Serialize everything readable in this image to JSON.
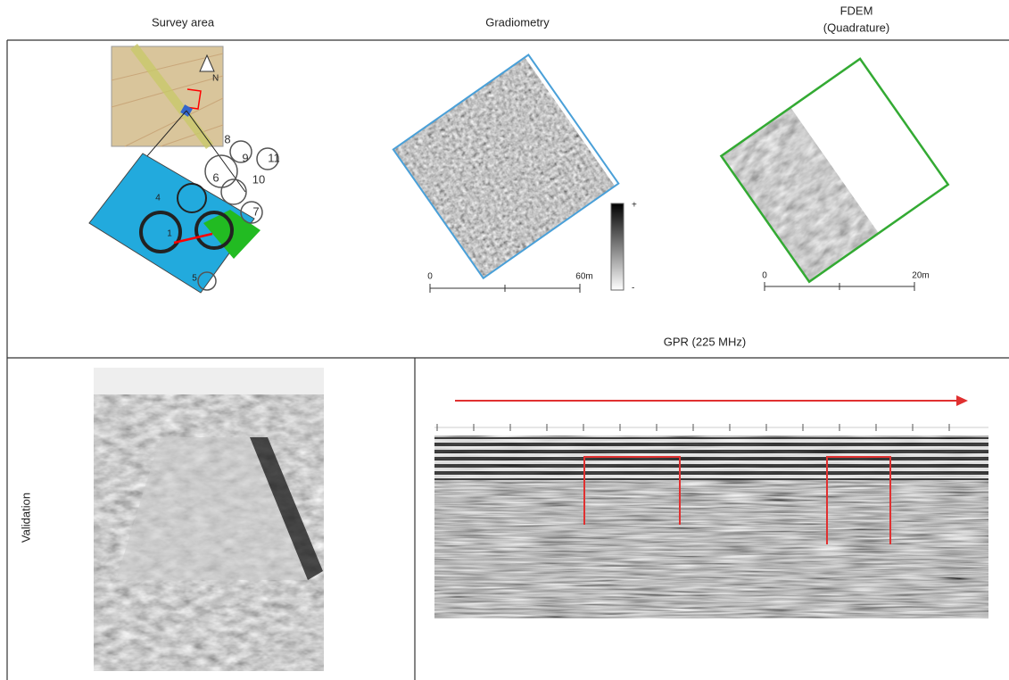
{
  "header": {
    "survey_area": "Survey area",
    "gradiometry": "Gradiometry",
    "fdem": "FDEM",
    "fdem_sub": "(Quadrature)"
  },
  "map": {
    "north": "N",
    "labels": [
      "8",
      "9",
      "11",
      "6",
      "10",
      "7",
      "4",
      "1",
      "5"
    ]
  },
  "gradiometry": {
    "scale_start": "0",
    "scale_end": "60m",
    "colorbar_top": "+",
    "colorbar_bottom": "-"
  },
  "fdem": {
    "scale_start": "0",
    "scale_end": "20m"
  },
  "gpr": {
    "title": "GPR (225 MHz)"
  },
  "validation": {
    "label": "Validation"
  }
}
